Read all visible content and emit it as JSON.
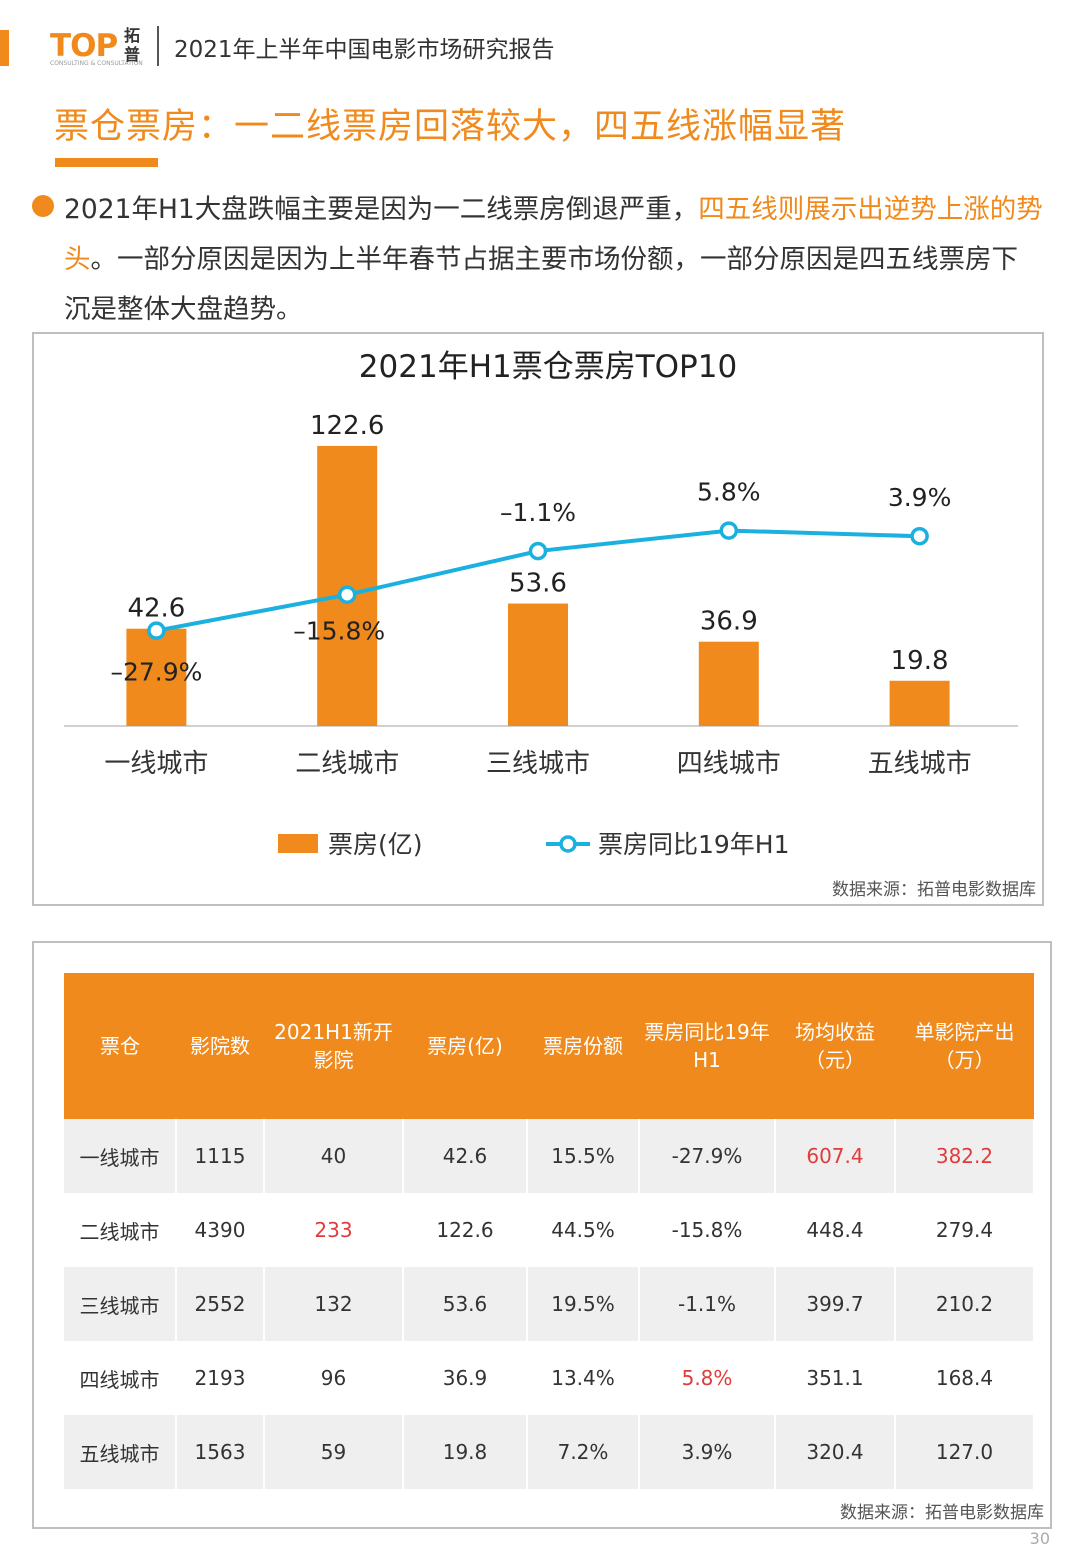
{
  "header": {
    "logo_text": "TOP",
    "logo_cn": "拓普",
    "logo_sub": "CONSULTING & CONSULTATION",
    "report_title": "2021年上半年中国电影市场研究报告"
  },
  "heading": "票仓票房：一二线票房回落较大，四五线涨幅显著",
  "intro": {
    "part1": "2021年H1大盘跌幅主要是因为一二线票房倒退严重，",
    "highlight": "四五线则展示出逆势上涨的势头",
    "part2": "。一部分原因是因为上半年春节占据主要市场份额，一部分原因是四五线票房下沉是整体大盘趋势。"
  },
  "colors": {
    "accent": "#f08a1c",
    "line": "#1ab0e0",
    "red": "#e23b3b"
  },
  "chart_data": {
    "type": "bar",
    "title": "2021年H1票仓票房TOP10",
    "categories": [
      "一线城市",
      "二线城市",
      "三线城市",
      "四线城市",
      "五线城市"
    ],
    "series": [
      {
        "name": "票房(亿)",
        "type": "bar",
        "values": [
          42.6,
          122.6,
          53.6,
          36.9,
          19.8
        ],
        "labels": [
          "42.6",
          "122.6",
          "53.6",
          "36.9",
          "19.8"
        ]
      },
      {
        "name": "票房同比19年H1",
        "type": "line",
        "values": [
          -27.9,
          -15.8,
          -1.1,
          5.8,
          3.9
        ],
        "labels": [
          "–27.9%",
          "–15.8%",
          "–1.1%",
          "5.8%",
          "3.9%"
        ]
      }
    ],
    "bar_ylim": [
      0,
      130
    ],
    "line_ylim": [
      -60,
      40
    ],
    "legend_position": "bottom"
  },
  "chart_source": "数据来源：拓普电影数据库",
  "table": {
    "headers": [
      "票仓",
      "影院数",
      "2021H1新开影院",
      "票房(亿)",
      "票房份额",
      "票房同比19年H1",
      "场均收益（元）",
      "单影院产出（万）"
    ],
    "rows": [
      [
        "一线城市",
        "1115",
        "40",
        "42.6",
        "15.5%",
        "-27.9%",
        "607.4",
        "382.2"
      ],
      [
        "二线城市",
        "4390",
        "233",
        "122.6",
        "44.5%",
        "-15.8%",
        "448.4",
        "279.4"
      ],
      [
        "三线城市",
        "2552",
        "132",
        "53.6",
        "19.5%",
        "-1.1%",
        "399.7",
        "210.2"
      ],
      [
        "四线城市",
        "2193",
        "96",
        "36.9",
        "13.4%",
        "5.8%",
        "351.1",
        "168.4"
      ],
      [
        "五线城市",
        "1563",
        "59",
        "19.8",
        "7.2%",
        "3.9%",
        "320.4",
        "127.0"
      ]
    ],
    "highlight_cells": [
      [
        0,
        6
      ],
      [
        0,
        7
      ],
      [
        1,
        2
      ],
      [
        3,
        5
      ]
    ]
  },
  "table_source": "数据来源：拓普电影数据库",
  "page_number": "30"
}
